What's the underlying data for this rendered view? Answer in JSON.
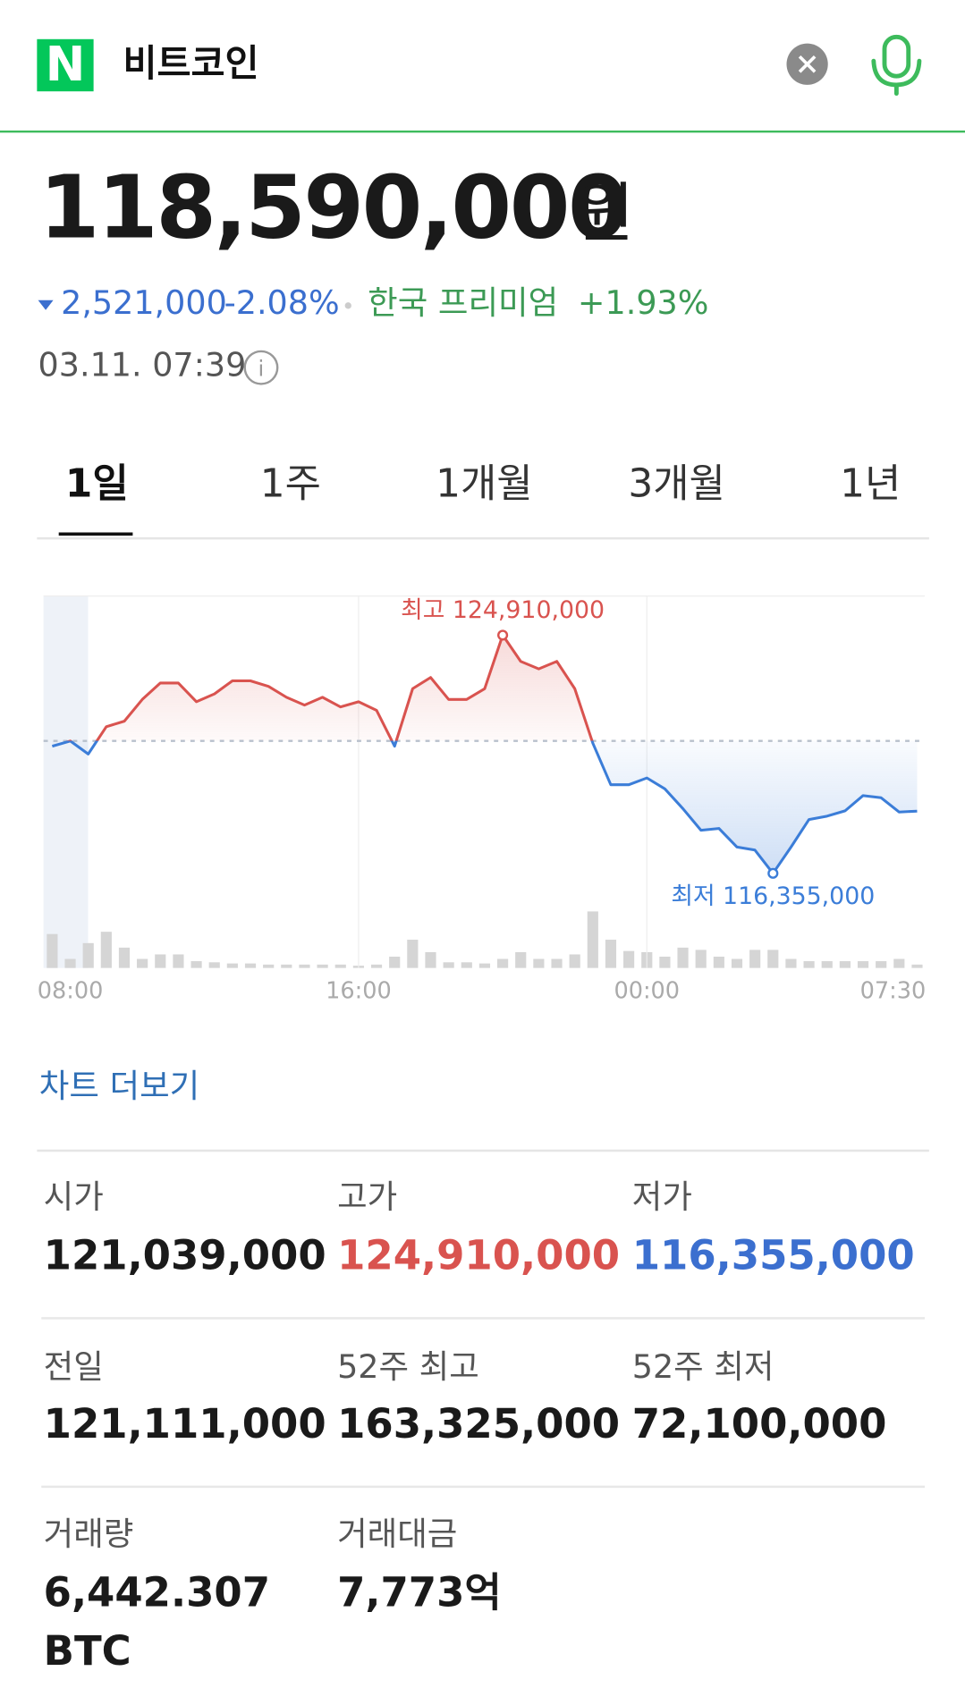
{
  "header": {
    "logo": "N",
    "query": "비트코인"
  },
  "price": {
    "value": "118,590,000",
    "unit": "원",
    "change": "2,521,000",
    "change_rate": "-2.08%",
    "premium_label": "한국 프리미엄",
    "premium": "+1.93%",
    "timestamp": "03.11. 07:39"
  },
  "tabs": [
    "1일",
    "1주",
    "1개월",
    "3개월",
    "1년"
  ],
  "chart_data": {
    "type": "line",
    "categories": [
      null,
      "08:00",
      null,
      null,
      null,
      null,
      null,
      null,
      null,
      null,
      null,
      null,
      null,
      null,
      null,
      null,
      null,
      "16:00",
      null,
      null,
      null,
      null,
      null,
      null,
      null,
      null,
      null,
      null,
      null,
      null,
      null,
      null,
      null,
      "00:00",
      null,
      null,
      null,
      null,
      null,
      null,
      null,
      null,
      null,
      null,
      null,
      null,
      null,
      null,
      "07:30"
    ],
    "values": [
      120920000,
      121111000,
      120640000,
      121620000,
      121820000,
      122600000,
      123190000,
      123190000,
      122520000,
      122800000,
      123270000,
      123270000,
      123070000,
      122680000,
      122400000,
      122680000,
      122330000,
      122520000,
      122210000,
      120920000,
      122990000,
      123390000,
      122600000,
      122600000,
      122990000,
      124910000,
      123970000,
      123700000,
      123970000,
      122990000,
      121030000,
      119540000,
      119540000,
      119780000,
      119390000,
      118680000,
      117900000,
      117970000,
      117300000,
      117190000,
      116355000,
      117300000,
      118290000,
      118410000,
      118600000,
      119150000,
      119070000,
      118560000,
      118590000
    ],
    "baseline": 121111000,
    "volume": [
      30,
      8,
      22,
      32,
      18,
      8,
      12,
      12,
      6,
      5,
      4,
      4,
      3,
      3,
      3,
      3,
      3,
      2,
      3,
      10,
      25,
      14,
      5,
      5,
      4,
      8,
      14,
      8,
      8,
      12,
      50,
      25,
      15,
      14,
      10,
      18,
      16,
      10,
      8,
      16,
      16,
      8,
      6,
      6,
      6,
      6,
      6,
      8,
      3
    ],
    "high_label": "최고 124,910,000",
    "low_label": "최저 116,355,000",
    "up_color": "#d9534f",
    "down_color": "#3b7dd8",
    "volume_color": "#d5d5d5"
  },
  "more_link": "차트 더보기",
  "stats": [
    {
      "label": "시가",
      "value": "121,039,000"
    },
    {
      "label": "고가",
      "value": "124,910,000"
    },
    {
      "label": "저가",
      "value": "116,355,000"
    },
    {
      "label": "전일",
      "value": "121,111,000"
    },
    {
      "label": "52주 최고",
      "value": "163,325,000"
    },
    {
      "label": "52주 최저",
      "value": "72,100,000"
    },
    {
      "label": "거래량",
      "value": "6,442.307",
      "unit": "BTC"
    },
    {
      "label": "거래대금",
      "value": "7,773억"
    }
  ]
}
